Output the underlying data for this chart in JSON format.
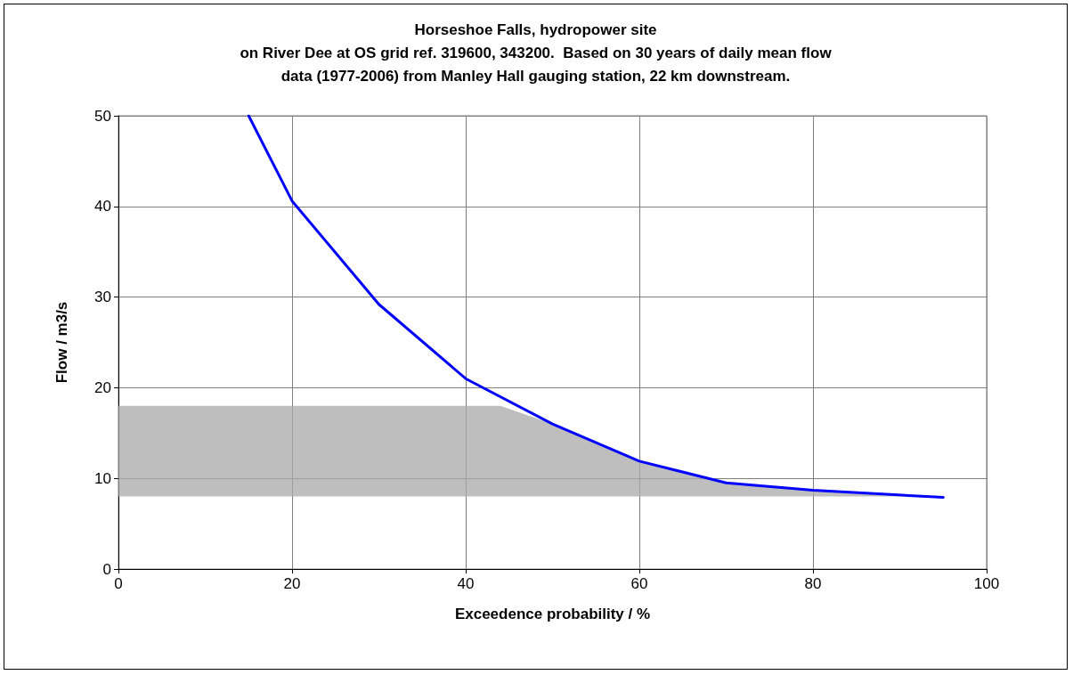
{
  "chart_data": {
    "type": "line",
    "title": "Horseshoe Falls, hydropower site\non River Dee at OS grid ref. 319600, 343200.  Based on 30 years of daily mean flow\ndata (1977-2006) from Manley Hall gauging station, 22 km downstream.",
    "xlabel": "Exceedence probability / %",
    "ylabel": "Flow / m3/s",
    "series": [
      {
        "type": "area",
        "color": "#a8a8a8",
        "x": [
          0,
          44,
          50,
          60,
          70,
          80,
          95
        ],
        "values": [
          null,
          null,
          null,
          null,
          null,
          null,
          null
        ],
        "lower": [
          8,
          8,
          8,
          8,
          8,
          8,
          8
        ],
        "upper": [
          18,
          18,
          16,
          11.9,
          9.5,
          8.7,
          7.9
        ]
      },
      {
        "color": "#0000ff",
        "x": [
          15,
          20,
          30,
          40,
          50,
          60,
          70,
          80,
          95
        ],
        "values": [
          50,
          40.6,
          29.2,
          21,
          16,
          11.9,
          9.5,
          8.7,
          7.9
        ]
      }
    ],
    "xlim": [
      0,
      100
    ],
    "xticks": [
      0,
      20,
      40,
      60,
      80,
      100
    ],
    "ylim": [
      0,
      50
    ],
    "yticks": [
      0,
      10,
      20,
      30,
      40,
      50
    ],
    "grid": true,
    "marker": "none",
    "line_style": "solid"
  }
}
